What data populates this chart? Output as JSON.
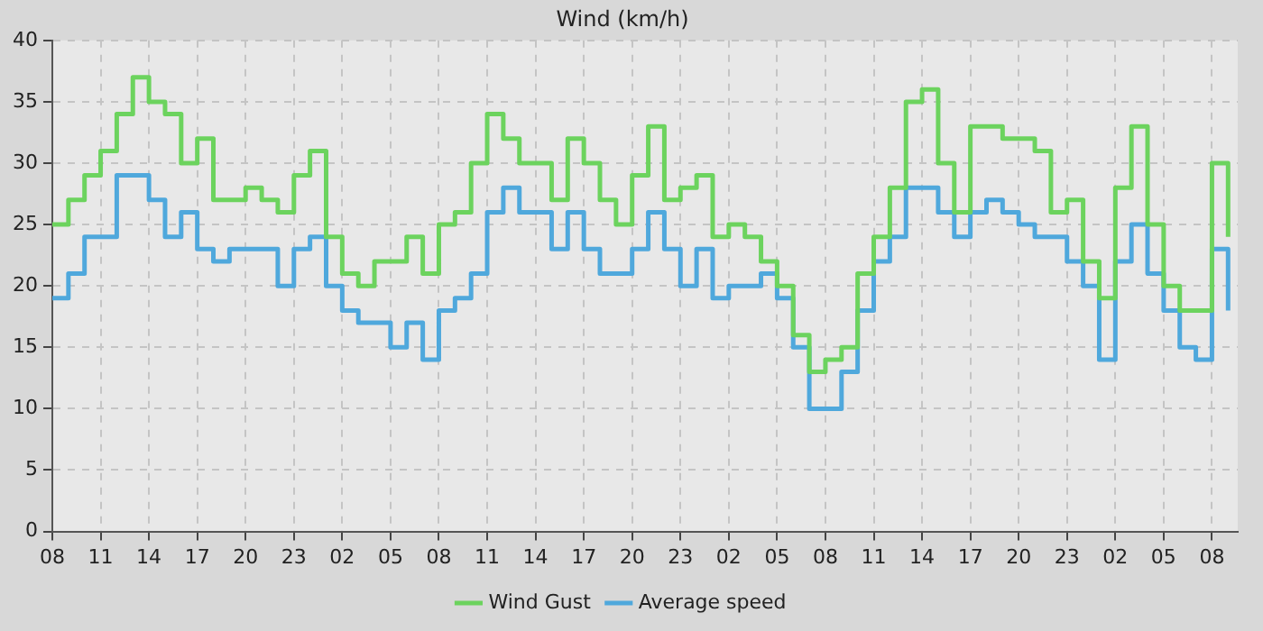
{
  "chart_data": {
    "type": "step",
    "title": "Wind (km/h)",
    "x": [
      "--01-01T08:00",
      "--01-01T09:00",
      "--01-01T10:00",
      "--01-01T11:00",
      "--01-01T12:00",
      "--01-01T13:00",
      "--01-01T14:00",
      "--01-01T15:00",
      "--01-01T16:00",
      "--01-01T17:00",
      "--01-01T18:00",
      "--01-01T19:00",
      "--01-01T20:00",
      "--01-01T21:00",
      "--01-01T22:00",
      "--01-01T23:00",
      "--01-02T00:00",
      "--01-02T01:00",
      "--01-02T02:00",
      "--01-02T03:00",
      "--01-02T04:00",
      "--01-02T05:00",
      "--01-02T06:00",
      "--01-02T07:00",
      "--01-02T08:00",
      "--01-02T09:00",
      "--01-02T10:00",
      "--01-02T11:00",
      "--01-02T12:00",
      "--01-02T13:00",
      "--01-02T14:00",
      "--01-02T15:00",
      "--01-02T16:00",
      "--01-02T17:00",
      "--01-02T18:00",
      "--01-02T19:00",
      "--01-02T20:00",
      "--01-02T21:00",
      "--01-02T22:00",
      "--01-02T23:00",
      "--01-03T00:00",
      "--01-03T01:00",
      "--01-03T02:00",
      "--01-03T03:00",
      "--01-03T04:00",
      "--01-03T05:00",
      "--01-03T06:00",
      "--01-03T07:00",
      "--01-03T08:00",
      "--01-03T09:00",
      "--01-03T10:00",
      "--01-03T11:00",
      "--01-03T12:00",
      "--01-03T13:00",
      "--01-03T14:00",
      "--01-03T15:00",
      "--01-03T16:00",
      "--01-03T17:00",
      "--01-03T18:00",
      "--01-03T19:00",
      "--01-03T20:00",
      "--01-03T21:00",
      "--01-03T22:00",
      "--01-03T23:00",
      "--01-04T00:00",
      "--01-04T01:00",
      "--01-04T02:00",
      "--01-04T03:00",
      "--01-04T04:00",
      "--01-04T05:00",
      "--01-04T06:00",
      "--01-04T07:00",
      "--01-04T08:00",
      "--01-04T09:00"
    ],
    "series": [
      {
        "name": "Wind Gust",
        "color": "#6cd35e",
        "values": [
          25,
          27,
          29,
          31,
          34,
          37,
          35,
          34,
          30,
          32,
          27,
          27,
          28,
          27,
          26,
          29,
          31,
          24,
          21,
          20,
          22,
          22,
          24,
          21,
          25,
          26,
          30,
          34,
          32,
          30,
          30,
          27,
          32,
          30,
          27,
          25,
          29,
          33,
          27,
          28,
          29,
          24,
          25,
          24,
          22,
          20,
          16,
          13,
          14,
          15,
          21,
          24,
          28,
          35,
          36,
          30,
          26,
          33,
          33,
          32,
          32,
          31,
          26,
          27,
          22,
          19,
          28,
          33,
          25,
          20,
          18,
          18,
          30,
          24
        ]
      },
      {
        "name": "Average speed",
        "color": "#4fa8dc",
        "values": [
          19,
          21,
          24,
          24,
          29,
          29,
          27,
          24,
          26,
          23,
          22,
          23,
          23,
          23,
          20,
          23,
          24,
          20,
          18,
          17,
          17,
          15,
          17,
          14,
          18,
          19,
          21,
          26,
          28,
          26,
          26,
          23,
          26,
          23,
          21,
          21,
          23,
          26,
          23,
          20,
          23,
          19,
          20,
          20,
          21,
          19,
          15,
          10,
          10,
          13,
          18,
          22,
          24,
          28,
          28,
          26,
          24,
          26,
          27,
          26,
          25,
          24,
          24,
          22,
          20,
          14,
          22,
          25,
          21,
          18,
          15,
          14,
          23,
          18
        ]
      }
    ],
    "xlim": [
      "--01-01T08:00",
      "--01-04T09:36"
    ],
    "xticks": [
      {
        "value": "--01-01T08:00",
        "label": "08"
      },
      {
        "value": "--01-01T11:00",
        "label": "11"
      },
      {
        "value": "--01-01T14:00",
        "label": "14"
      },
      {
        "value": "--01-01T17:00",
        "label": "17"
      },
      {
        "value": "--01-01T20:00",
        "label": "20"
      },
      {
        "value": "--01-01T23:00",
        "label": "23"
      },
      {
        "value": "--01-02T02:00",
        "label": "02"
      },
      {
        "value": "--01-02T05:00",
        "label": "05"
      },
      {
        "value": "--01-02T08:00",
        "label": "08"
      },
      {
        "value": "--01-02T11:00",
        "label": "11"
      },
      {
        "value": "--01-02T14:00",
        "label": "14"
      },
      {
        "value": "--01-02T17:00",
        "label": "17"
      },
      {
        "value": "--01-02T20:00",
        "label": "20"
      },
      {
        "value": "--01-02T23:00",
        "label": "23"
      },
      {
        "value": "--01-03T02:00",
        "label": "02"
      },
      {
        "value": "--01-03T05:00",
        "label": "05"
      },
      {
        "value": "--01-03T08:00",
        "label": "08"
      },
      {
        "value": "--01-03T11:00",
        "label": "11"
      },
      {
        "value": "--01-03T14:00",
        "label": "14"
      },
      {
        "value": "--01-03T17:00",
        "label": "17"
      },
      {
        "value": "--01-03T20:00",
        "label": "20"
      },
      {
        "value": "--01-03T23:00",
        "label": "23"
      },
      {
        "value": "--01-04T02:00",
        "label": "02"
      },
      {
        "value": "--01-04T05:00",
        "label": "05"
      },
      {
        "value": "--01-04T08:00",
        "label": "08"
      }
    ],
    "ylim": [
      0,
      40
    ],
    "yticks": [
      0,
      5,
      10,
      15,
      20,
      25,
      30,
      35,
      40
    ],
    "grid": true,
    "legend": "bottom",
    "marker": "none",
    "line_style": "solid"
  }
}
